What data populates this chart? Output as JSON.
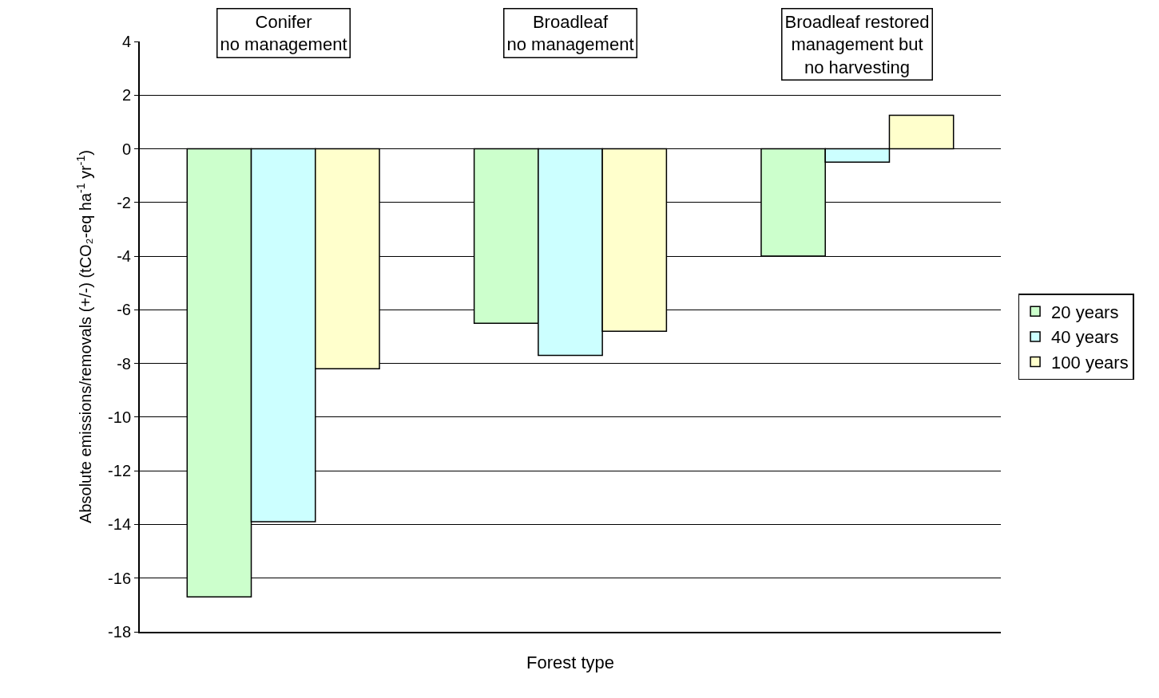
{
  "chart_data": {
    "type": "bar",
    "xlabel": "Forest type",
    "ylabel": "Absolute emissions/removals (+/-) (tCO₂-eq ha$^{-1}$ yr$^{-1}$)",
    "categories": [
      "Conifer\nno management",
      "Broadleaf\nno management",
      "Broadleaf restored\nmanagement but\nno harvesting"
    ],
    "series": [
      {
        "name": "20 years",
        "color": "#ccffcc",
        "values": [
          -16.7,
          -6.5,
          -4.0
        ]
      },
      {
        "name": "40 years",
        "color": "#ccffff",
        "values": [
          -13.9,
          -7.7,
          -0.5
        ]
      },
      {
        "name": "100 years",
        "color": "#ffffcc",
        "values": [
          -8.2,
          -6.8,
          1.25
        ]
      }
    ],
    "ylim": [
      -18,
      4
    ],
    "yticks": [
      -18,
      -16,
      -14,
      -12,
      -10,
      -8,
      -6,
      -4,
      -2,
      0,
      2,
      4
    ],
    "grid": "y",
    "legend": "right"
  }
}
